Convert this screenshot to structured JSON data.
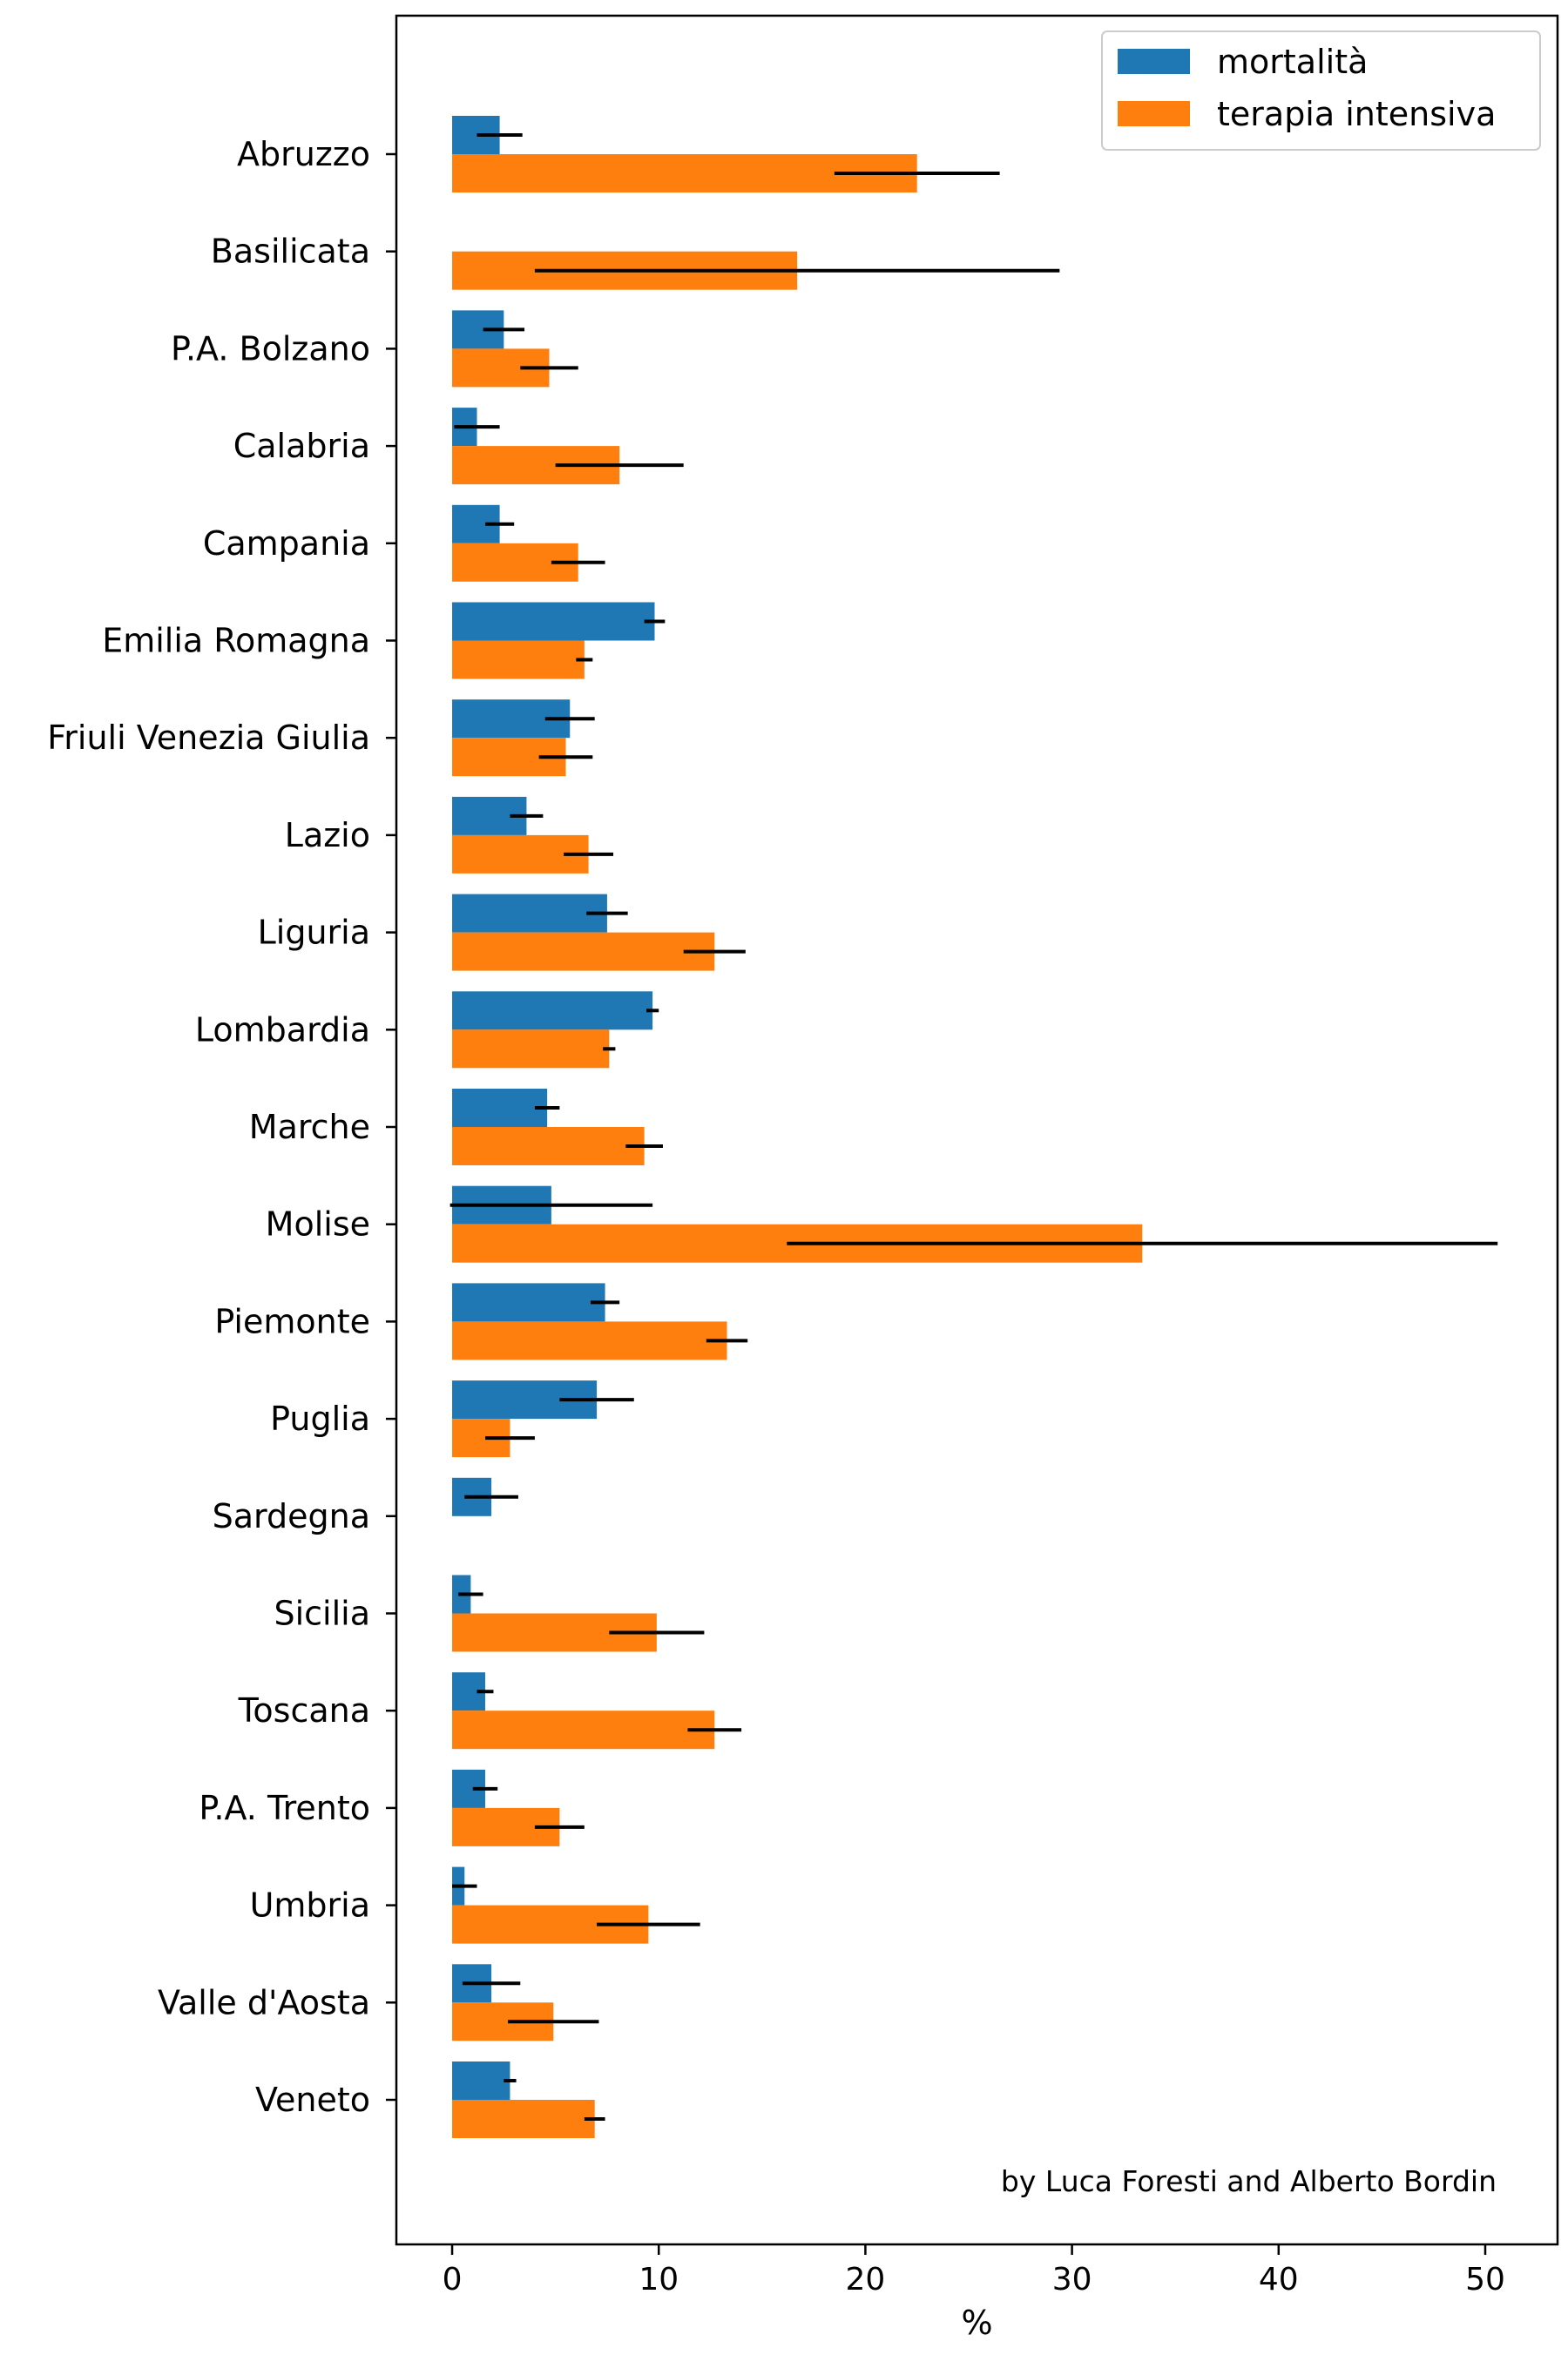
{
  "chart_data": {
    "type": "bar",
    "orientation": "horizontal",
    "title": "",
    "xlabel": "%",
    "ylabel": "",
    "xlim": [
      -2.7,
      53.5
    ],
    "x_ticks": [
      0,
      10,
      20,
      30,
      40,
      50
    ],
    "grid": false,
    "legend_position": "top-right",
    "annotation": "by Luca Foresti and Alberto Bordin",
    "categories": [
      "Abruzzo",
      "Basilicata",
      "P.A. Bolzano",
      "Calabria",
      "Campania",
      "Emilia Romagna",
      "Friuli Venezia Giulia",
      "Lazio",
      "Liguria",
      "Lombardia",
      "Marche",
      "Molise",
      "Piemonte",
      "Puglia",
      "Sardegna",
      "Sicilia",
      "Toscana",
      "P.A. Trento",
      "Umbria",
      "Valle d'Aosta",
      "Veneto"
    ],
    "series": [
      {
        "name": "mortalità",
        "color": "#1f77b4",
        "values": [
          2.3,
          0.0,
          2.5,
          1.2,
          2.3,
          9.8,
          5.7,
          3.6,
          7.5,
          9.7,
          4.6,
          4.8,
          7.4,
          7.0,
          1.9,
          0.9,
          1.6,
          1.6,
          0.6,
          1.9,
          2.8
        ],
        "errors": [
          1.1,
          0.0,
          1.0,
          1.1,
          0.7,
          0.5,
          1.2,
          0.8,
          1.0,
          0.3,
          0.6,
          4.9,
          0.7,
          1.8,
          1.3,
          0.6,
          0.4,
          0.6,
          0.6,
          1.4,
          0.3
        ]
      },
      {
        "name": "terapia intensiva",
        "color": "#ff7f0e",
        "values": [
          22.5,
          16.7,
          4.7,
          8.1,
          6.1,
          6.4,
          5.5,
          6.6,
          12.7,
          7.6,
          9.3,
          33.4,
          13.3,
          2.8,
          0.0,
          9.9,
          12.7,
          5.2,
          9.5,
          4.9,
          6.9
        ],
        "errors": [
          4.0,
          12.7,
          1.4,
          3.1,
          1.3,
          0.4,
          1.3,
          1.2,
          1.5,
          0.3,
          0.9,
          17.2,
          1.0,
          1.2,
          0.0,
          2.3,
          1.3,
          1.2,
          2.5,
          2.2,
          0.5
        ]
      }
    ]
  }
}
